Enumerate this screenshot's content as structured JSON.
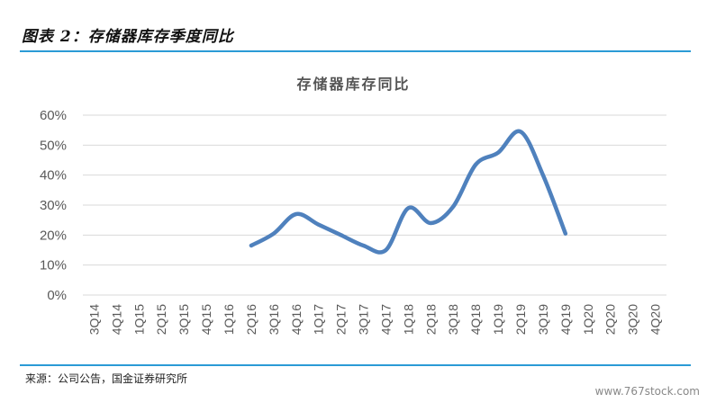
{
  "figure_title": "图表 2：存储器库存季度同比",
  "source_note": "来源：公司公告，国金证券研究所",
  "watermark": "www.767stock.com",
  "colors": {
    "series": "#4f81bd",
    "rule": "#2b9bd6",
    "grid": "#d9d9d9",
    "axis_text": "#595959"
  },
  "chart_data": {
    "type": "line",
    "title": "存储器库存同比",
    "xlabel": "",
    "ylabel": "",
    "ylim": [
      0,
      60
    ],
    "yticks": [
      "0%",
      "10%",
      "20%",
      "30%",
      "40%",
      "50%",
      "60%"
    ],
    "grid": true,
    "legend": "none",
    "categories": [
      "3Q14",
      "4Q14",
      "1Q15",
      "2Q15",
      "3Q15",
      "4Q15",
      "1Q16",
      "2Q16",
      "3Q16",
      "4Q16",
      "1Q17",
      "2Q17",
      "3Q17",
      "4Q17",
      "1Q18",
      "2Q18",
      "3Q18",
      "4Q18",
      "1Q19",
      "2Q19",
      "3Q19",
      "4Q19",
      "1Q20",
      "2Q20",
      "3Q20",
      "4Q20"
    ],
    "series": [
      {
        "values": [
          null,
          null,
          null,
          null,
          null,
          null,
          null,
          16.5,
          20.5,
          27,
          23.5,
          20,
          16.5,
          15,
          29,
          24,
          29.5,
          43.5,
          47.5,
          54.5,
          40,
          20.5,
          null,
          null,
          null,
          null
        ]
      }
    ]
  }
}
